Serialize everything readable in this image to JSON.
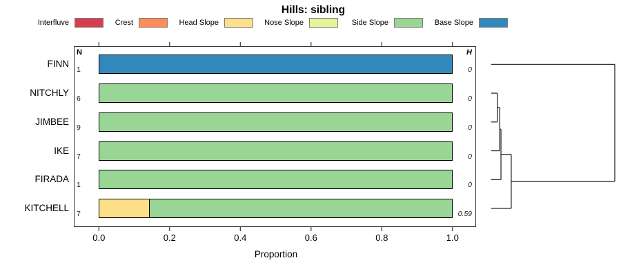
{
  "chart_data": {
    "type": "bar",
    "subtype": "horizontal-stacked-proportion-with-dendrogram",
    "title": "Hills: sibling",
    "xlabel": "Proportion",
    "xlim": [
      0,
      1
    ],
    "x_tick_labels": [
      "0.0",
      "0.2",
      "0.4",
      "0.6",
      "0.8",
      "1.0"
    ],
    "grid": false,
    "legend_position": "top",
    "legend": [
      {
        "label": "Interfluve",
        "color": "#D53E4F"
      },
      {
        "label": "Crest",
        "color": "#FC8D59"
      },
      {
        "label": "Head Slope",
        "color": "#FEE08B"
      },
      {
        "label": "Nose Slope",
        "color": "#E6F598"
      },
      {
        "label": "Side Slope",
        "color": "#99D594"
      },
      {
        "label": "Base Slope",
        "color": "#3288BD"
      }
    ],
    "columns": {
      "n_header": "N",
      "h_header": "H"
    },
    "categories": [
      "FINN",
      "NITCHLY",
      "JIMBEE",
      "IKE",
      "FIRADA",
      "KITCHELL"
    ],
    "rows": [
      {
        "name": "FINN",
        "n": 1,
        "h": "0",
        "segments": [
          {
            "class": "Base Slope",
            "value": 1.0
          }
        ]
      },
      {
        "name": "NITCHLY",
        "n": 6,
        "h": "0",
        "segments": [
          {
            "class": "Side Slope",
            "value": 1.0
          }
        ]
      },
      {
        "name": "JIMBEE",
        "n": 9,
        "h": "0",
        "segments": [
          {
            "class": "Side Slope",
            "value": 1.0
          }
        ]
      },
      {
        "name": "IKE",
        "n": 7,
        "h": "0",
        "segments": [
          {
            "class": "Side Slope",
            "value": 1.0
          }
        ]
      },
      {
        "name": "FIRADA",
        "n": 1,
        "h": "0",
        "segments": [
          {
            "class": "Side Slope",
            "value": 1.0
          }
        ]
      },
      {
        "name": "KITCHELL",
        "n": 7,
        "h": "0.59",
        "segments": [
          {
            "class": "Head Slope",
            "value": 0.143
          },
          {
            "class": "Side Slope",
            "value": 0.857
          }
        ]
      }
    ],
    "dendrogram": {
      "leaf_order": [
        "FINN",
        "NITCHLY",
        "JIMBEE",
        "IKE",
        "FIRADA",
        "KITCHELL"
      ],
      "merges": [
        {
          "a": "NITCHLY",
          "b": "JIMBEE",
          "height": 0.05
        },
        {
          "a": "@0",
          "b": "IKE",
          "height": 0.07
        },
        {
          "a": "@1",
          "b": "FIRADA",
          "height": 0.08
        },
        {
          "a": "@2",
          "b": "KITCHELL",
          "height": 0.163
        },
        {
          "a": "@3",
          "b": "FINN",
          "height": 1.0
        }
      ]
    }
  }
}
